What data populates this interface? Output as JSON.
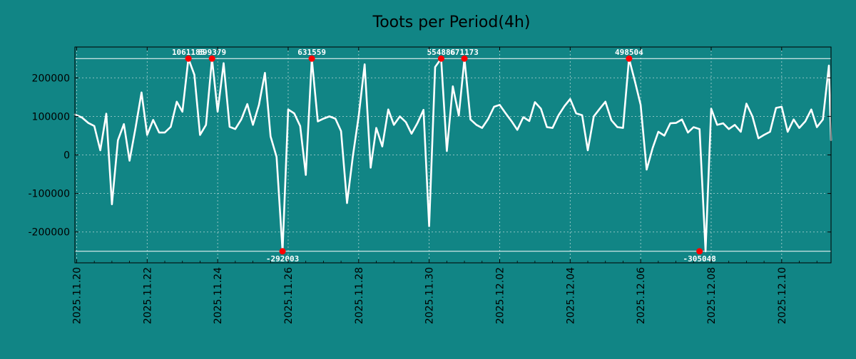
{
  "chart_data": {
    "type": "line",
    "title": "Toots per Period(4h)",
    "xlabel": "",
    "ylabel": "",
    "x_range_days": [
      -0.05,
      21.4
    ],
    "x_origin_date": "2025.11.20",
    "ylim": [
      -280000,
      280000
    ],
    "grid": true,
    "yticks": [
      -200000,
      -100000,
      0,
      100000,
      200000
    ],
    "ytick_labels": [
      "-200000",
      "-100000",
      "0",
      "100000",
      "200000"
    ],
    "xticks": [
      0,
      2,
      4,
      6,
      8,
      10,
      12,
      14,
      16,
      18,
      20
    ],
    "xtick_labels": [
      "2025.11.20",
      "2025.11.22",
      "2025.11.24",
      "2025.11.26",
      "2025.11.28",
      "2025.11.30",
      "2025.12.02",
      "2025.12.04",
      "2025.12.06",
      "2025.12.08",
      "2025.12.10"
    ],
    "clip_lines": [
      250000,
      -250000
    ],
    "series": [
      {
        "name": "toots",
        "x": [
          -0.05,
          0.15,
          0.33,
          0.5,
          0.67,
          0.84,
          1.0,
          1.17,
          1.34,
          1.5,
          1.67,
          1.84,
          2.0,
          2.17,
          2.34,
          2.5,
          2.67,
          2.84,
          3.0,
          3.17,
          3.34,
          3.5,
          3.67,
          3.84,
          4.0,
          4.17,
          4.34,
          4.5,
          4.67,
          4.84,
          5.0,
          5.17,
          5.34,
          5.5,
          5.67,
          5.84,
          6.0,
          6.17,
          6.34,
          6.5,
          6.67,
          6.84,
          7.0,
          7.17,
          7.34,
          7.5,
          7.67,
          7.84,
          8.0,
          8.17,
          8.34,
          8.5,
          8.67,
          8.84,
          9.0,
          9.17,
          9.34,
          9.5,
          9.67,
          9.84,
          10.0,
          10.17,
          10.34,
          10.5,
          10.67,
          10.84,
          11.0,
          11.17,
          11.34,
          11.5,
          11.67,
          11.84,
          12.0,
          12.17,
          12.34,
          12.5,
          12.67,
          12.84,
          13.0,
          13.17,
          13.34,
          13.5,
          13.67,
          13.84,
          14.0,
          14.17,
          14.34,
          14.5,
          14.67,
          14.84,
          15.0,
          15.17,
          15.34,
          15.5,
          15.67,
          15.84,
          16.0,
          16.17,
          16.34,
          16.5,
          16.67,
          16.84,
          17.0,
          17.17,
          17.34,
          17.5,
          17.67,
          17.84,
          18.0,
          18.17,
          18.34,
          18.5,
          18.67,
          18.84,
          19.0,
          19.17,
          19.34,
          19.5,
          19.67,
          19.84,
          20.0,
          20.17,
          20.34,
          20.5,
          20.67,
          20.84,
          21.0,
          21.17,
          21.34,
          21.4
        ],
        "values": [
          105000,
          97000,
          83000,
          75000,
          12000,
          107000,
          -128000,
          38000,
          80000,
          -15000,
          70000,
          162000,
          52000,
          91000,
          58000,
          58000,
          73000,
          138000,
          112000,
          250000,
          208000,
          52000,
          78000,
          250000,
          112000,
          238000,
          73000,
          67000,
          92000,
          132000,
          78000,
          130000,
          213000,
          48000,
          -5000,
          -250000,
          118000,
          108000,
          75000,
          -52000,
          250000,
          87000,
          94000,
          100000,
          94000,
          62000,
          -125000,
          0,
          100000,
          235000,
          -33000,
          70000,
          22000,
          118000,
          78000,
          100000,
          85000,
          55000,
          83000,
          117000,
          -185000,
          228000,
          250000,
          10000,
          178000,
          102000,
          250000,
          92000,
          78000,
          70000,
          93000,
          125000,
          130000,
          108000,
          87000,
          65000,
          98000,
          88000,
          137000,
          120000,
          72000,
          70000,
          103000,
          127000,
          145000,
          108000,
          103000,
          12000,
          100000,
          120000,
          138000,
          90000,
          72000,
          70000,
          250000,
          190000,
          130000,
          -38000,
          18000,
          60000,
          50000,
          82000,
          83000,
          92000,
          58000,
          72000,
          67000,
          -250000,
          120000,
          78000,
          82000,
          67000,
          78000,
          60000,
          133000,
          100000,
          43000,
          52000,
          60000,
          122000,
          125000,
          60000,
          92000,
          70000,
          87000,
          118000,
          72000,
          92000,
          232000,
          38000
        ]
      }
    ],
    "annotations": [
      {
        "x": 3.17,
        "y": 250000,
        "label": "1061185"
      },
      {
        "x": 3.84,
        "y": 250000,
        "label": "899379"
      },
      {
        "x": 5.84,
        "y": -250000,
        "label": "-292003"
      },
      {
        "x": 6.67,
        "y": 250000,
        "label": "631559"
      },
      {
        "x": 10.34,
        "y": 250000,
        "label": "554886"
      },
      {
        "x": 11.0,
        "y": 250000,
        "label": "671173"
      },
      {
        "x": 15.67,
        "y": 250000,
        "label": "498504"
      },
      {
        "x": 17.67,
        "y": -250000,
        "label": "-305048"
      }
    ],
    "colors": {
      "background": "#118585",
      "plot_background": "#118585",
      "line": "#ffffff",
      "marker": "#ff0000",
      "grid": "#cfe3e3",
      "text": "#000000",
      "annotation_text": "#ffffff"
    }
  }
}
